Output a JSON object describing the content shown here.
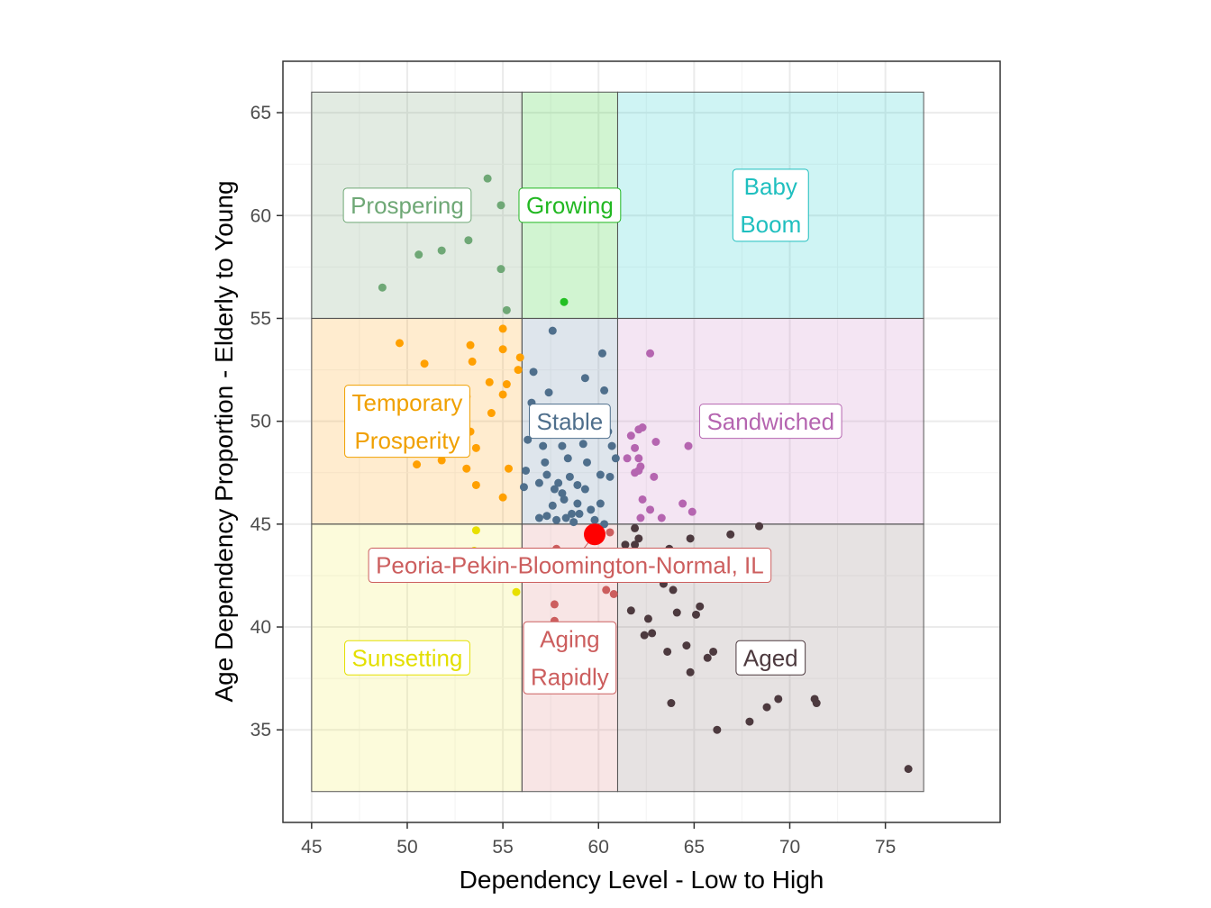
{
  "chart_data": {
    "type": "scatter",
    "title": "",
    "xlabel": "Dependency Level - Low to High",
    "ylabel": "Age Dependency Proportion - Elderly to Young",
    "xlim": [
      43.5,
      81
    ],
    "ylim": [
      30.5,
      67.5
    ],
    "xticks": [
      45,
      50,
      55,
      60,
      65,
      70,
      75
    ],
    "yticks": [
      35,
      40,
      45,
      50,
      55,
      60,
      65
    ],
    "grid": true,
    "legend": "none",
    "regions": [
      {
        "name": "Prospering",
        "label": "Prospering",
        "x": [
          45,
          56
        ],
        "y": [
          55,
          66
        ],
        "fill": "#7aa47a",
        "text": "#6fa876",
        "label_at": [
          50,
          60.5
        ]
      },
      {
        "name": "Growing",
        "label": "Growing",
        "x": [
          56,
          61
        ],
        "y": [
          55,
          66
        ],
        "fill": "#2ecc2e",
        "text": "#22b822",
        "label_at": [
          58.5,
          60.5
        ]
      },
      {
        "name": "Baby Boom",
        "label": "Baby\nBoom",
        "x": [
          61,
          77
        ],
        "y": [
          55,
          66
        ],
        "fill": "#26cccc",
        "text": "#1fbfbf",
        "label_at": [
          69,
          60.5
        ]
      },
      {
        "name": "Temporary Prosperity",
        "label": "Temporary\nProsperity",
        "x": [
          45,
          56
        ],
        "y": [
          45,
          55
        ],
        "fill": "#ffa726",
        "text": "#f0a000",
        "label_at": [
          50,
          50
        ]
      },
      {
        "name": "Stable",
        "label": "Stable",
        "x": [
          56,
          61
        ],
        "y": [
          45,
          55
        ],
        "fill": "#6a89a8",
        "text": "#4f6f8c",
        "label_at": [
          58.5,
          50
        ]
      },
      {
        "name": "Sandwiched",
        "label": "Sandwiched",
        "x": [
          61,
          77
        ],
        "y": [
          45,
          55
        ],
        "fill": "#cc88c8",
        "text": "#b565b0",
        "label_at": [
          69,
          50
        ]
      },
      {
        "name": "Sunsetting",
        "label": "Sunsetting",
        "x": [
          45,
          56
        ],
        "y": [
          32,
          45
        ],
        "fill": "#f2ee5a",
        "text": "#e3df00",
        "label_at": [
          50,
          38.5
        ]
      },
      {
        "name": "Aging Rapidly",
        "label": "Aging\nRapidly",
        "x": [
          56,
          61
        ],
        "y": [
          32,
          45
        ],
        "fill": "#dd8888",
        "text": "#cc5e5e",
        "label_at": [
          58.5,
          38.5
        ]
      },
      {
        "name": "Aged",
        "label": "Aged",
        "x": [
          61,
          77
        ],
        "y": [
          32,
          45
        ],
        "fill": "#8f7d7d",
        "text": "#4d3a3f",
        "label_at": [
          69,
          38.5
        ]
      }
    ],
    "series": [
      {
        "region": "Prospering",
        "color": "#6fa876",
        "points": [
          [
            54.2,
            61.8
          ],
          [
            54.9,
            60.5
          ],
          [
            53.2,
            58.8
          ],
          [
            51.8,
            58.3
          ],
          [
            50.6,
            58.1
          ],
          [
            54.9,
            57.4
          ],
          [
            48.7,
            56.5
          ],
          [
            55.2,
            55.4
          ]
        ]
      },
      {
        "region": "Growing",
        "color": "#22c022",
        "points": [
          [
            58.2,
            55.8
          ]
        ]
      },
      {
        "region": "Baby Boom",
        "color": "#1fbfbf",
        "points": []
      },
      {
        "region": "Temporary Prosperity",
        "color": "#ffa000",
        "points": [
          [
            49.6,
            53.8
          ],
          [
            53.3,
            53.7
          ],
          [
            55.0,
            54.5
          ],
          [
            55.0,
            53.5
          ],
          [
            53.4,
            52.9
          ],
          [
            55.9,
            53.1
          ],
          [
            50.9,
            52.8
          ],
          [
            55.8,
            52.5
          ],
          [
            54.3,
            51.9
          ],
          [
            55.2,
            51.8
          ],
          [
            53.1,
            51.2
          ],
          [
            55.0,
            51.3
          ],
          [
            54.4,
            50.4
          ],
          [
            53.3,
            49.5
          ],
          [
            51.6,
            48.9
          ],
          [
            53.6,
            48.7
          ],
          [
            50.5,
            47.9
          ],
          [
            51.8,
            48.1
          ],
          [
            53.1,
            47.7
          ],
          [
            55.3,
            47.7
          ],
          [
            53.6,
            46.9
          ],
          [
            55.0,
            46.3
          ]
        ]
      },
      {
        "region": "Stable",
        "color": "#4f6f8c",
        "points": [
          [
            57.6,
            54.4
          ],
          [
            60.2,
            53.3
          ],
          [
            56.6,
            52.4
          ],
          [
            59.3,
            52.1
          ],
          [
            60.3,
            51.5
          ],
          [
            57.4,
            51.4
          ],
          [
            56.5,
            50.9
          ],
          [
            57.8,
            49.9
          ],
          [
            59.1,
            49.7
          ],
          [
            60.5,
            49.5
          ],
          [
            56.3,
            49.1
          ],
          [
            57.1,
            48.8
          ],
          [
            58.1,
            48.8
          ],
          [
            59.2,
            48.9
          ],
          [
            60.7,
            48.8
          ],
          [
            60.9,
            48.2
          ],
          [
            57.2,
            48.0
          ],
          [
            58.4,
            48.2
          ],
          [
            59.4,
            48.0
          ],
          [
            56.2,
            47.6
          ],
          [
            57.3,
            47.4
          ],
          [
            58.5,
            47.3
          ],
          [
            60.1,
            47.4
          ],
          [
            60.6,
            47.3
          ],
          [
            56.9,
            47.0
          ],
          [
            57.9,
            47.0
          ],
          [
            58.9,
            46.9
          ],
          [
            57.7,
            46.7
          ],
          [
            56.1,
            46.8
          ],
          [
            58.1,
            46.5
          ],
          [
            59.3,
            46.7
          ],
          [
            58.2,
            46.2
          ],
          [
            57.6,
            45.9
          ],
          [
            58.9,
            46.0
          ],
          [
            60.1,
            46.0
          ],
          [
            59.0,
            45.5
          ],
          [
            58.6,
            45.5
          ],
          [
            59.6,
            45.7
          ],
          [
            57.8,
            45.2
          ],
          [
            57.3,
            45.4
          ],
          [
            58.3,
            45.3
          ],
          [
            56.9,
            45.3
          ],
          [
            58.7,
            45.1
          ],
          [
            59.8,
            45.2
          ],
          [
            60.3,
            45.0
          ]
        ]
      },
      {
        "region": "Sandwiched",
        "color": "#b565b0",
        "points": [
          [
            62.7,
            53.3
          ],
          [
            62.1,
            49.6
          ],
          [
            62.3,
            49.7
          ],
          [
            61.7,
            49.3
          ],
          [
            63.0,
            49.0
          ],
          [
            64.7,
            48.8
          ],
          [
            61.9,
            48.7
          ],
          [
            61.5,
            48.2
          ],
          [
            62.1,
            48.2
          ],
          [
            62.2,
            47.8
          ],
          [
            61.9,
            47.5
          ],
          [
            62.1,
            47.6
          ],
          [
            62.9,
            47.3
          ],
          [
            62.3,
            46.2
          ],
          [
            62.7,
            45.7
          ],
          [
            64.4,
            46.0
          ],
          [
            64.9,
            45.6
          ],
          [
            63.3,
            45.3
          ],
          [
            62.2,
            45.3
          ]
        ]
      },
      {
        "region": "Sunsetting",
        "color": "#e8e000",
        "points": [
          [
            53.6,
            44.7
          ],
          [
            53.5,
            43.7
          ],
          [
            55.7,
            41.7
          ]
        ]
      },
      {
        "region": "Aging Rapidly",
        "color": "#cc5e5e",
        "points": [
          [
            60.6,
            44.6
          ],
          [
            57.8,
            43.8
          ],
          [
            60.4,
            41.8
          ],
          [
            60.8,
            41.6
          ],
          [
            57.7,
            41.1
          ],
          [
            57.7,
            40.3
          ]
        ]
      },
      {
        "region": "Aged",
        "color": "#4d3a3f",
        "points": [
          [
            61.9,
            44.8
          ],
          [
            62.1,
            44.3
          ],
          [
            61.9,
            44.0
          ],
          [
            61.4,
            44.0
          ],
          [
            63.7,
            43.8
          ],
          [
            64.8,
            44.3
          ],
          [
            66.9,
            44.5
          ],
          [
            68.4,
            44.9
          ],
          [
            62.0,
            43.1
          ],
          [
            63.4,
            42.1
          ],
          [
            63.9,
            41.8
          ],
          [
            65.3,
            41.0
          ],
          [
            61.7,
            40.8
          ],
          [
            64.1,
            40.7
          ],
          [
            65.1,
            40.6
          ],
          [
            62.6,
            40.4
          ],
          [
            62.8,
            39.7
          ],
          [
            62.4,
            39.6
          ],
          [
            64.6,
            39.1
          ],
          [
            63.6,
            38.8
          ],
          [
            66.0,
            38.8
          ],
          [
            65.7,
            38.5
          ],
          [
            64.8,
            37.8
          ],
          [
            63.8,
            36.3
          ],
          [
            69.4,
            36.5
          ],
          [
            71.3,
            36.5
          ],
          [
            71.4,
            36.3
          ],
          [
            68.8,
            36.1
          ],
          [
            67.9,
            35.4
          ],
          [
            66.2,
            35.0
          ],
          [
            76.2,
            33.1
          ]
        ]
      }
    ],
    "highlight": {
      "name": "Peoria-Pekin-Bloomington-Normal, IL",
      "x": 59.8,
      "y": 44.5,
      "color": "#ff0000",
      "label_at": [
        58.5,
        43.0
      ]
    }
  }
}
